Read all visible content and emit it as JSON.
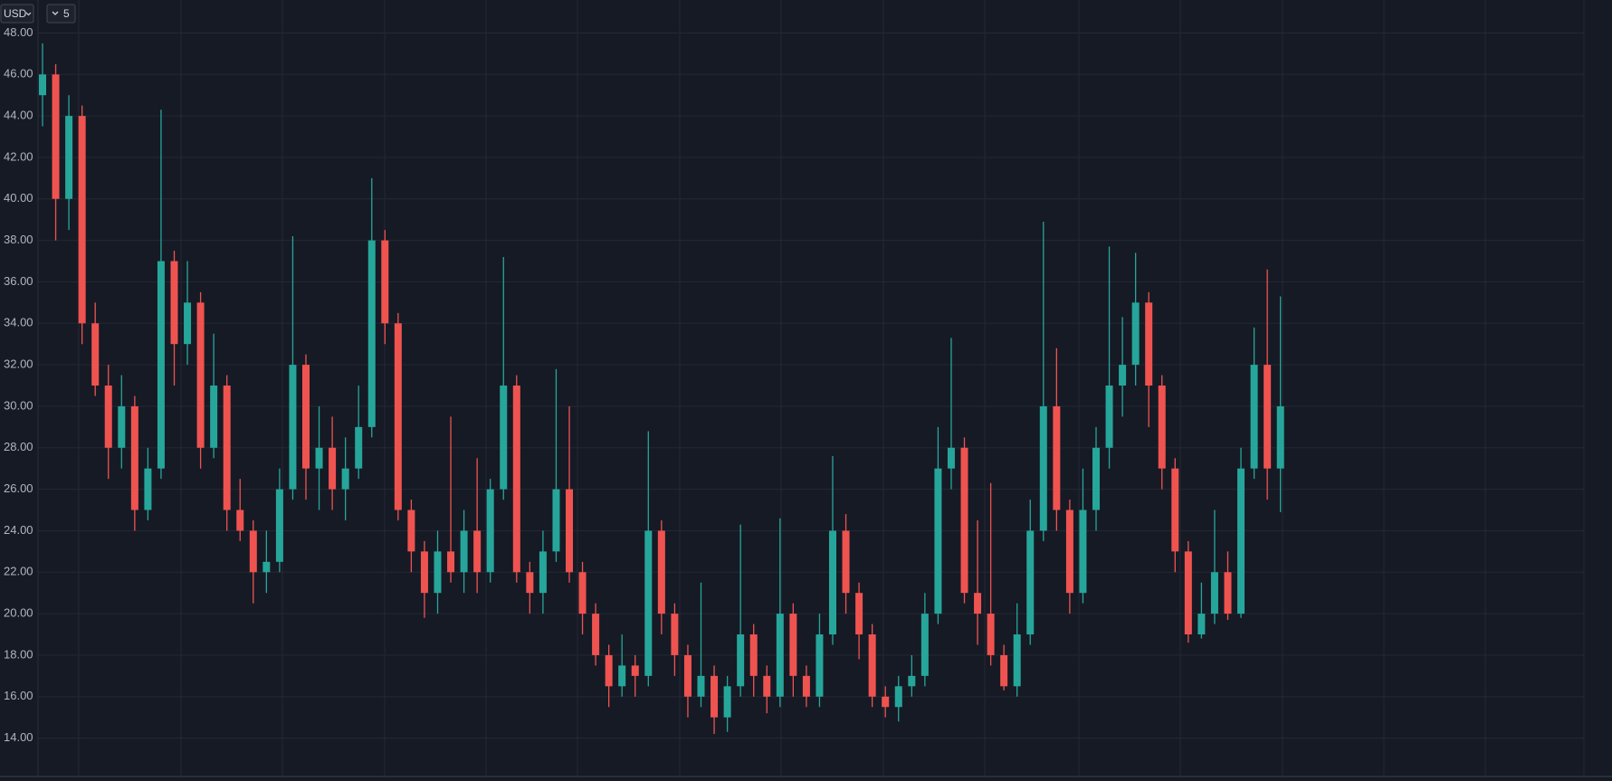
{
  "toolbar": {
    "currency": "USD",
    "count": 5
  },
  "chart_data": {
    "type": "candlestick",
    "ylim": [
      12.15,
      49.59
    ],
    "yticks": [
      {
        "value": 14,
        "label": "14.00"
      },
      {
        "value": 16,
        "label": "16.00"
      },
      {
        "value": 18,
        "label": "18.00"
      },
      {
        "value": 20,
        "label": "20.00"
      },
      {
        "value": 22,
        "label": "22.00"
      },
      {
        "value": 24,
        "label": "24.00"
      },
      {
        "value": 26,
        "label": "26.00"
      },
      {
        "value": 28,
        "label": "28.00"
      },
      {
        "value": 30,
        "label": "30.00"
      },
      {
        "value": 32,
        "label": "32.00"
      },
      {
        "value": 34,
        "label": "34.00"
      },
      {
        "value": 36,
        "label": "36.00"
      },
      {
        "value": 38,
        "label": "38.00"
      },
      {
        "value": 40,
        "label": "40.00"
      },
      {
        "value": 42,
        "label": "42.00"
      },
      {
        "value": 44,
        "label": "44.00"
      },
      {
        "value": 46,
        "label": "46.00"
      },
      {
        "value": 48,
        "label": "48.00"
      }
    ],
    "grid": true,
    "up_color": "#26a69a",
    "down_color": "#ef5350",
    "open": [
      45,
      46,
      40,
      44,
      34,
      31,
      28,
      30,
      25,
      27,
      37,
      33,
      35,
      28,
      31,
      25,
      24,
      22,
      22.5,
      26,
      32,
      27,
      28,
      26,
      27,
      29,
      38,
      34,
      25,
      23,
      21,
      23,
      22,
      24,
      22,
      26,
      31,
      22,
      21,
      23,
      26,
      22,
      20,
      18,
      16.5,
      17.5,
      17,
      24,
      20,
      18,
      16,
      17,
      15,
      16.5,
      19,
      17,
      16,
      20,
      17,
      16,
      19,
      24,
      21,
      19,
      16,
      15.5,
      16.5,
      17,
      20,
      27,
      28,
      21,
      20,
      18,
      16.5,
      19,
      24,
      30,
      25,
      21,
      25,
      28,
      31,
      32,
      35,
      31,
      27,
      23,
      19,
      20,
      22,
      20,
      27,
      32,
      27
    ],
    "high": [
      47.5,
      46.5,
      45,
      44.5,
      35,
      32,
      31.5,
      30.5,
      28,
      44.3,
      37.5,
      37,
      35.5,
      33.5,
      31.5,
      26.5,
      24.5,
      24,
      27,
      38.2,
      32.5,
      30,
      29.5,
      28.5,
      31,
      41,
      38.5,
      34.5,
      25.5,
      23.5,
      24,
      29.5,
      25,
      27.5,
      26.5,
      37.2,
      31.5,
      22.5,
      24,
      31.8,
      30,
      22.5,
      20.5,
      18.5,
      19,
      18,
      28.8,
      24.5,
      20.5,
      18.5,
      21.5,
      17.5,
      17,
      24.3,
      19.5,
      17.5,
      24.6,
      20.5,
      17.5,
      20,
      27.6,
      24.8,
      21.5,
      19.5,
      16.5,
      17,
      18,
      21,
      29,
      33.3,
      28.5,
      24.5,
      26.3,
      18.5,
      20.5,
      25.5,
      38.9,
      32.8,
      25.5,
      27,
      29,
      37.7,
      34.3,
      37.4,
      35.5,
      31.5,
      27.5,
      23.5,
      21.5,
      25,
      23,
      28,
      33.8,
      36.6,
      35.3
    ],
    "low": [
      43.5,
      38,
      38.5,
      33,
      30.5,
      26.5,
      27,
      24,
      24.5,
      26.5,
      31,
      32,
      27,
      27.5,
      24,
      23.5,
      20.5,
      21,
      22,
      25.5,
      25.5,
      25,
      25,
      24.5,
      26.5,
      28.5,
      33,
      24.5,
      22,
      19.8,
      20,
      21.5,
      21,
      21,
      21.5,
      25.5,
      21.5,
      20,
      20,
      22.5,
      21.5,
      19,
      17.5,
      15.5,
      16,
      16,
      16.5,
      19,
      17,
      15,
      15.5,
      14.2,
      14.3,
      16,
      16,
      15.2,
      15.5,
      16,
      15.5,
      15.5,
      18.5,
      20,
      17.8,
      15.5,
      15,
      14.8,
      16,
      16.5,
      19.5,
      26,
      20.5,
      18.5,
      17.5,
      16.3,
      16,
      18.5,
      23.5,
      24,
      20,
      20.5,
      24,
      27,
      29.5,
      31,
      29,
      26,
      22,
      18.6,
      18.8,
      19.5,
      19.7,
      19.8,
      26.5,
      25.5,
      24.9
    ],
    "close": [
      46,
      40,
      44,
      34,
      31,
      28,
      30,
      25,
      27,
      37,
      33,
      35,
      28,
      31,
      25,
      24,
      22,
      22.5,
      26,
      32,
      27,
      28,
      26,
      27,
      29,
      38,
      34,
      25,
      23,
      21,
      23,
      22,
      24,
      22,
      26,
      31,
      22,
      21,
      23,
      26,
      22,
      20,
      18,
      16.5,
      17.5,
      17,
      24,
      20,
      18,
      16,
      17,
      15,
      16.5,
      19,
      17,
      16,
      20,
      17,
      16,
      19,
      24,
      21,
      19,
      16,
      15.5,
      16.5,
      17,
      20,
      27,
      28,
      21,
      20,
      18,
      16.5,
      19,
      24,
      30,
      25,
      21,
      25,
      28,
      31,
      32,
      35,
      31,
      27,
      23,
      19,
      20,
      22,
      20,
      27,
      32,
      27,
      30
    ]
  }
}
